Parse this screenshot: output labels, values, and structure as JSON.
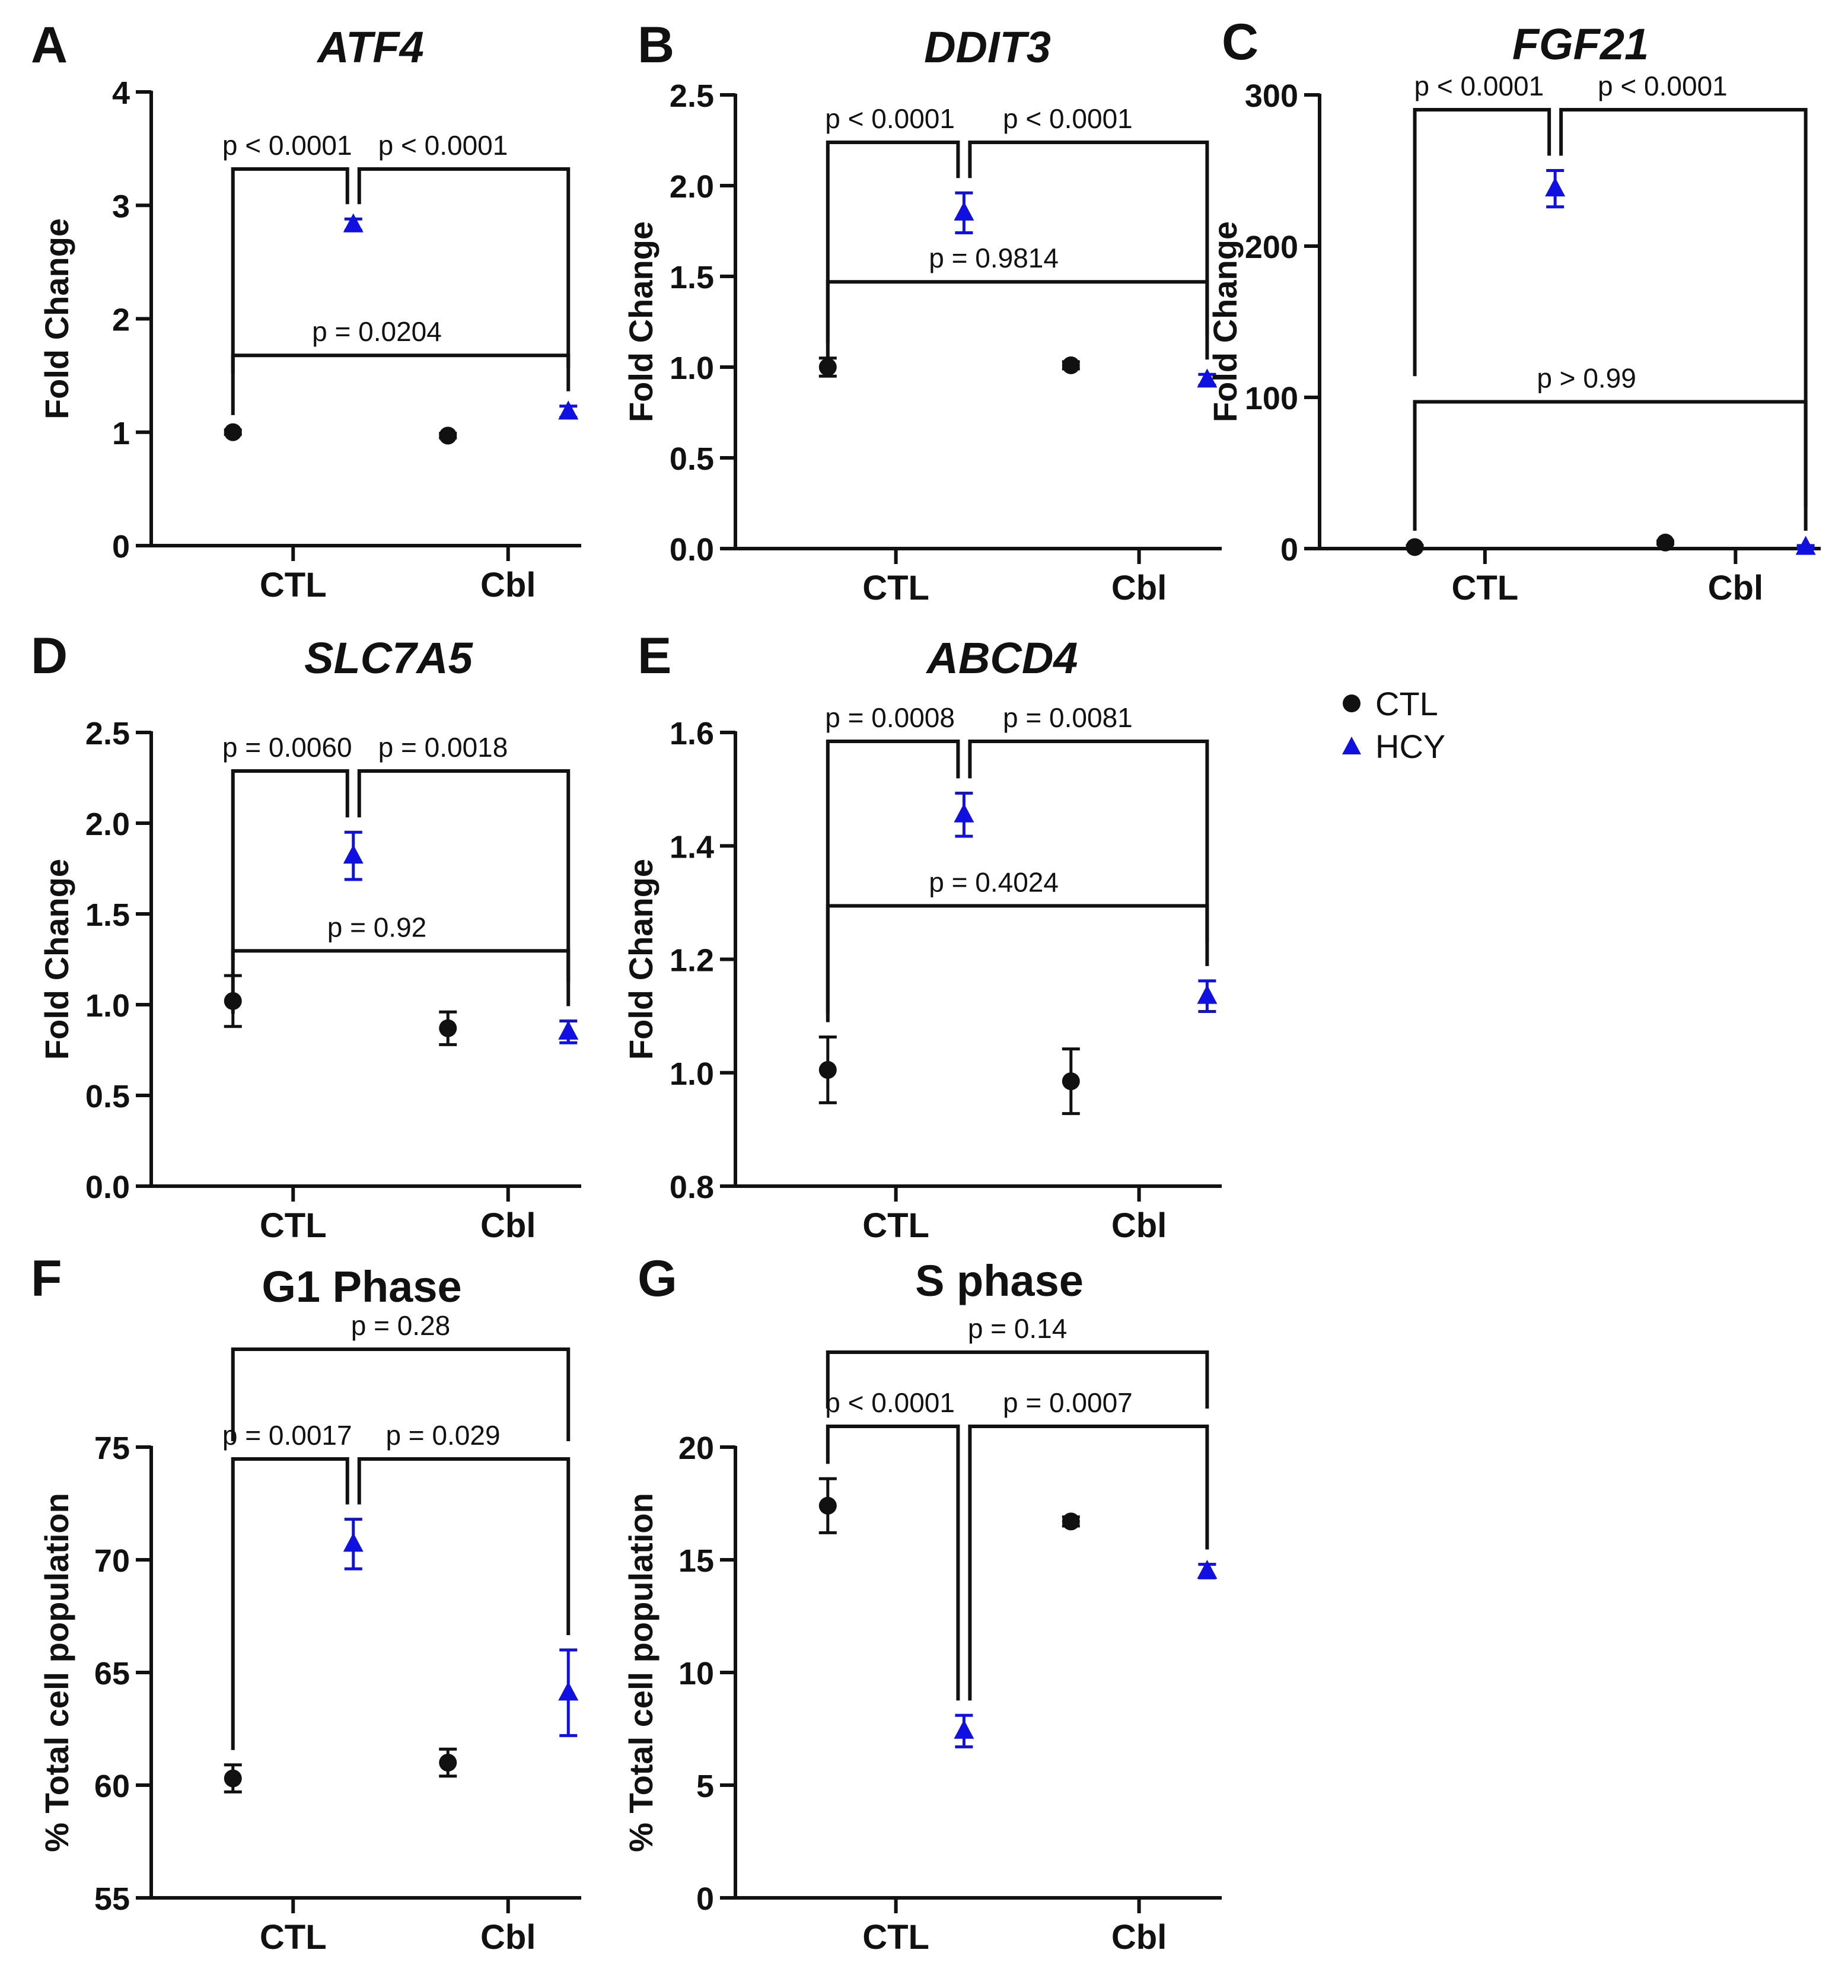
{
  "legend": {
    "items": [
      {
        "label": "CTL",
        "marker": "circle",
        "color": "#111111"
      },
      {
        "label": "HCY",
        "marker": "triangle",
        "color": "#1010e0"
      }
    ]
  },
  "colors": {
    "ctl": "#111111",
    "hcy": "#1010e0",
    "axis": "#111111"
  },
  "chart_data": [
    {
      "id": "A",
      "type": "scatter",
      "title": "ATF4",
      "title_style": "italic",
      "ylabel": "Fold Change",
      "categories": [
        "CTL",
        "Cbl"
      ],
      "ylim": [
        0,
        4
      ],
      "yticks": [
        "0",
        "1",
        "2",
        "3",
        "4"
      ],
      "series": [
        {
          "name": "CTL",
          "points": [
            {
              "x": "CTL",
              "y": 1.0,
              "err": 0.02
            },
            {
              "x": "Cbl",
              "y": 0.97,
              "err": 0.02
            }
          ]
        },
        {
          "name": "HCY",
          "points": [
            {
              "x": "CTL",
              "y": 2.83,
              "err": 0.05
            },
            {
              "x": "Cbl",
              "y": 1.18,
              "err": 0.05
            }
          ]
        }
      ],
      "comparisons": [
        {
          "from": "CTL:CTL",
          "to": "CTL:HCY",
          "label": "p < 0.0001"
        },
        {
          "from": "CTL:HCY",
          "to": "Cbl:HCY",
          "label": "p < 0.0001"
        },
        {
          "from": "CTL:CTL",
          "to": "Cbl:HCY",
          "label": "p = 0.0204"
        }
      ]
    },
    {
      "id": "B",
      "type": "scatter",
      "title": "DDIT3",
      "title_style": "italic",
      "ylabel": "Fold Change",
      "categories": [
        "CTL",
        "Cbl"
      ],
      "ylim": [
        0,
        2.5
      ],
      "yticks": [
        "0.0",
        "0.5",
        "1.0",
        "1.5",
        "2.0",
        "2.5"
      ],
      "series": [
        {
          "name": "CTL",
          "points": [
            {
              "x": "CTL",
              "y": 1.0,
              "err": 0.05
            },
            {
              "x": "Cbl",
              "y": 1.01,
              "err": 0.02
            }
          ]
        },
        {
          "name": "HCY",
          "points": [
            {
              "x": "CTL",
              "y": 1.85,
              "err": 0.11
            },
            {
              "x": "Cbl",
              "y": 0.93,
              "err": 0.03
            }
          ]
        }
      ],
      "comparisons": [
        {
          "from": "CTL:CTL",
          "to": "CTL:HCY",
          "label": "p < 0.0001"
        },
        {
          "from": "CTL:HCY",
          "to": "Cbl:HCY",
          "label": "p < 0.0001"
        },
        {
          "from": "CTL:CTL",
          "to": "Cbl:HCY",
          "label": "p = 0.9814"
        }
      ]
    },
    {
      "id": "C",
      "type": "scatter",
      "title": "FGF21",
      "title_style": "italic",
      "ylabel": "Fold Change",
      "categories": [
        "CTL",
        "Cbl"
      ],
      "ylim": [
        0,
        300
      ],
      "yticks": [
        "0",
        "100",
        "200",
        "300"
      ],
      "series": [
        {
          "name": "CTL",
          "points": [
            {
              "x": "CTL",
              "y": 1,
              "err": 1
            },
            {
              "x": "Cbl",
              "y": 4,
              "err": 1
            }
          ]
        },
        {
          "name": "HCY",
          "points": [
            {
              "x": "CTL",
              "y": 238,
              "err": 12
            },
            {
              "x": "Cbl",
              "y": 1,
              "err": 1
            }
          ]
        }
      ],
      "comparisons": [
        {
          "from": "CTL:CTL",
          "to": "CTL:HCY",
          "label": "p < 0.0001"
        },
        {
          "from": "CTL:HCY",
          "to": "Cbl:HCY",
          "label": "p < 0.0001"
        },
        {
          "from": "CTL:CTL",
          "to": "Cbl:HCY",
          "label": "p > 0.99"
        }
      ]
    },
    {
      "id": "D",
      "type": "scatter",
      "title": "SLC7A5",
      "title_style": "italic",
      "ylabel": "Fold Change",
      "categories": [
        "CTL",
        "Cbl"
      ],
      "ylim": [
        0,
        2.5
      ],
      "yticks": [
        "0.0",
        "0.5",
        "1.0",
        "1.5",
        "2.0",
        "2.5"
      ],
      "series": [
        {
          "name": "CTL",
          "points": [
            {
              "x": "CTL",
              "y": 1.02,
              "err": 0.14
            },
            {
              "x": "Cbl",
              "y": 0.87,
              "err": 0.09
            }
          ]
        },
        {
          "name": "HCY",
          "points": [
            {
              "x": "CTL",
              "y": 1.82,
              "err": 0.13
            },
            {
              "x": "Cbl",
              "y": 0.85,
              "err": 0.06
            }
          ]
        }
      ],
      "comparisons": [
        {
          "from": "CTL:CTL",
          "to": "CTL:HCY",
          "label": "p = 0.0060"
        },
        {
          "from": "CTL:HCY",
          "to": "Cbl:HCY",
          "label": "p = 0.0018"
        },
        {
          "from": "CTL:CTL",
          "to": "Cbl:HCY",
          "label": "p = 0.92"
        }
      ]
    },
    {
      "id": "E",
      "type": "scatter",
      "title": "ABCD4",
      "title_style": "italic",
      "ylabel": "Fold Change",
      "categories": [
        "CTL",
        "Cbl"
      ],
      "ylim": [
        0.8,
        1.6
      ],
      "yticks": [
        "0.8",
        "1.0",
        "1.2",
        "1.4",
        "1.6"
      ],
      "series": [
        {
          "name": "CTL",
          "points": [
            {
              "x": "CTL",
              "y": 1.005,
              "err": 0.058
            },
            {
              "x": "Cbl",
              "y": 0.985,
              "err": 0.057
            }
          ]
        },
        {
          "name": "HCY",
          "points": [
            {
              "x": "CTL",
              "y": 1.455,
              "err": 0.038
            },
            {
              "x": "Cbl",
              "y": 1.135,
              "err": 0.027
            }
          ]
        }
      ],
      "comparisons": [
        {
          "from": "CTL:CTL",
          "to": "CTL:HCY",
          "label": "p = 0.0008"
        },
        {
          "from": "CTL:HCY",
          "to": "Cbl:HCY",
          "label": "p = 0.0081"
        },
        {
          "from": "CTL:CTL",
          "to": "Cbl:HCY",
          "label": "p = 0.4024"
        }
      ]
    },
    {
      "id": "F",
      "type": "scatter",
      "title": "G1 Phase",
      "title_style": "normal",
      "ylabel": "% Total cell population",
      "categories": [
        "CTL",
        "Cbl"
      ],
      "ylim": [
        55,
        75
      ],
      "yticks": [
        "55",
        "60",
        "65",
        "70",
        "75"
      ],
      "series": [
        {
          "name": "CTL",
          "points": [
            {
              "x": "CTL",
              "y": 60.3,
              "err": 0.6
            },
            {
              "x": "Cbl",
              "y": 61.0,
              "err": 0.6
            }
          ]
        },
        {
          "name": "HCY",
          "points": [
            {
              "x": "CTL",
              "y": 70.7,
              "err": 1.1
            },
            {
              "x": "Cbl",
              "y": 64.1,
              "err": 1.9
            }
          ]
        }
      ],
      "comparisons": [
        {
          "from": "CTL:CTL",
          "to": "CTL:HCY",
          "label": "p = 0.0017"
        },
        {
          "from": "CTL:HCY",
          "to": "Cbl:HCY",
          "label": "p = 0.029"
        },
        {
          "from": "CTL:CTL",
          "to": "Cbl:HCY",
          "label": "p = 0.28"
        }
      ]
    },
    {
      "id": "G",
      "type": "scatter",
      "title": "S phase",
      "title_style": "normal",
      "ylabel": "% Total cell population",
      "categories": [
        "CTL",
        "Cbl"
      ],
      "ylim": [
        0,
        20
      ],
      "yticks": [
        "0",
        "5",
        "10",
        "15",
        "20"
      ],
      "series": [
        {
          "name": "CTL",
          "points": [
            {
              "x": "CTL",
              "y": 17.4,
              "err": 1.2
            },
            {
              "x": "Cbl",
              "y": 16.7,
              "err": 0.2
            }
          ]
        },
        {
          "name": "HCY",
          "points": [
            {
              "x": "CTL",
              "y": 7.4,
              "err": 0.7
            },
            {
              "x": "Cbl",
              "y": 14.5,
              "err": 0.3
            }
          ]
        }
      ],
      "comparisons": [
        {
          "from": "CTL:CTL",
          "to": "CTL:HCY",
          "label": "p < 0.0001"
        },
        {
          "from": "CTL:HCY",
          "to": "Cbl:HCY",
          "label": "p = 0.0007"
        },
        {
          "from": "CTL:CTL",
          "to": "Cbl:HCY",
          "label": "p = 0.14"
        }
      ]
    }
  ]
}
